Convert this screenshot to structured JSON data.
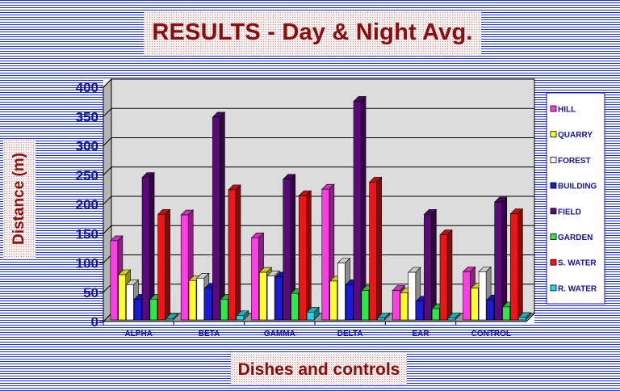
{
  "chart_data": {
    "type": "bar",
    "title": "RESULTS - Day & Night Avg.",
    "xlabel": "Dishes and controls",
    "ylabel": "Distance (m)",
    "ylim": [
      0,
      400
    ],
    "yticks": [
      0,
      50,
      100,
      150,
      200,
      250,
      300,
      350,
      400
    ],
    "grid": true,
    "legend": "right",
    "categories": [
      "ALPHA",
      "BETA",
      "GAMMA",
      "DELTA",
      "EAR",
      "CONTROL"
    ],
    "series": [
      {
        "name": "HILL",
        "color": "#ff3ee8",
        "values": [
          138,
          182,
          143,
          226,
          53,
          85
        ]
      },
      {
        "name": "QUARRY",
        "color": "#ffff2a",
        "values": [
          80,
          70,
          84,
          69,
          49,
          57
        ]
      },
      {
        "name": "FOREST",
        "color": "#ffffff",
        "values": [
          63,
          74,
          78,
          100,
          84,
          85
        ]
      },
      {
        "name": "BUILDING",
        "color": "#1a1ad8",
        "values": [
          38,
          57,
          76,
          63,
          35,
          37
        ]
      },
      {
        "name": "FIELD",
        "color": "#5a0a7a",
        "values": [
          246,
          349,
          243,
          376,
          183,
          204
        ]
      },
      {
        "name": "GARDEN",
        "color": "#2ee84a",
        "values": [
          38,
          38,
          48,
          53,
          22,
          25
        ]
      },
      {
        "name": "S. WATER",
        "color": "#f01414",
        "values": [
          183,
          225,
          215,
          238,
          148,
          184
        ]
      },
      {
        "name": "R. WATER",
        "color": "#22d8e8",
        "values": [
          5,
          10,
          16,
          6,
          6,
          7
        ]
      }
    ]
  },
  "colors": {
    "title": "#8b0c0c",
    "axis_text": "#14148c",
    "plot_back": "#dcdcdc",
    "plot_side": "#b4b4b4",
    "plot_floor": "#9a9a9a",
    "gridline": "#000000"
  }
}
